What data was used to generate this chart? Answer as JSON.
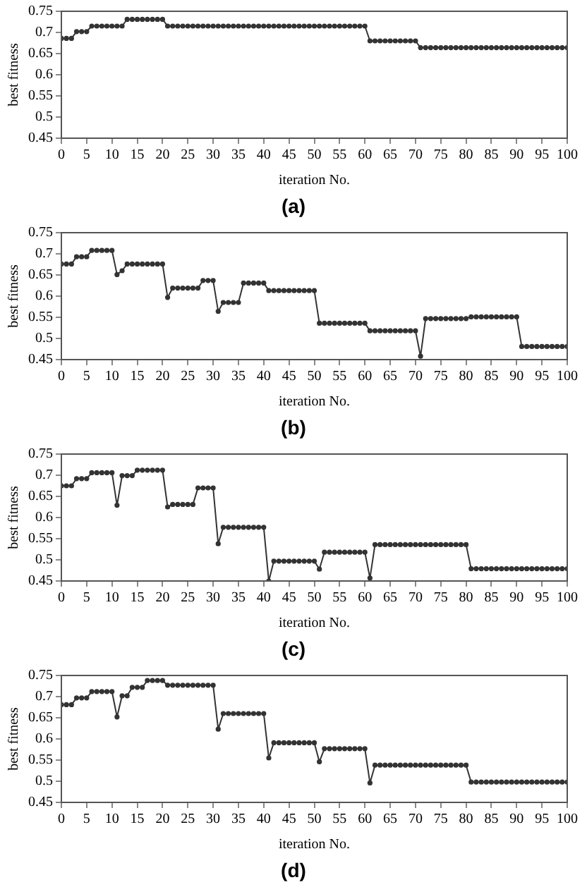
{
  "chart_data": [
    {
      "type": "line",
      "xlabel": "iteration No.",
      "ylabel": "best fitness",
      "annotations": [
        "(a)"
      ],
      "marker": "circle",
      "line_style": "solid",
      "grid": false,
      "legend": false,
      "xlim": [
        0,
        100
      ],
      "xticks": [
        0,
        5,
        10,
        15,
        20,
        25,
        30,
        35,
        40,
        45,
        50,
        55,
        60,
        65,
        70,
        75,
        80,
        85,
        90,
        95,
        100
      ],
      "ylim": [
        0.45,
        0.75
      ],
      "yticks": [
        0.45,
        0.5,
        0.55,
        0.6,
        0.65,
        0.7,
        0.75
      ],
      "x": [
        0,
        1,
        2,
        3,
        4,
        5,
        6,
        7,
        8,
        9,
        10,
        11,
        12,
        13,
        14,
        15,
        16,
        17,
        18,
        19,
        20,
        21,
        22,
        23,
        24,
        25,
        26,
        27,
        28,
        29,
        30,
        31,
        32,
        33,
        34,
        35,
        36,
        37,
        38,
        39,
        40,
        41,
        42,
        43,
        44,
        45,
        46,
        47,
        48,
        49,
        50,
        51,
        52,
        53,
        54,
        55,
        56,
        57,
        58,
        59,
        60,
        61,
        62,
        63,
        64,
        65,
        66,
        67,
        68,
        69,
        70,
        71,
        72,
        73,
        74,
        75,
        76,
        77,
        78,
        79,
        80,
        81,
        82,
        83,
        84,
        85,
        86,
        87,
        88,
        89,
        90,
        91,
        92,
        93,
        94,
        95,
        96,
        97,
        98,
        99,
        100
      ],
      "series": [
        {
          "color": "#333333",
          "values": [
            0.686,
            0.686,
            0.686,
            0.702,
            0.702,
            0.702,
            0.715,
            0.715,
            0.715,
            0.715,
            0.715,
            0.715,
            0.715,
            0.731,
            0.731,
            0.731,
            0.731,
            0.731,
            0.731,
            0.731,
            0.731,
            0.715,
            0.715,
            0.715,
            0.715,
            0.715,
            0.715,
            0.715,
            0.715,
            0.715,
            0.715,
            0.715,
            0.715,
            0.715,
            0.715,
            0.715,
            0.715,
            0.715,
            0.715,
            0.715,
            0.715,
            0.715,
            0.715,
            0.715,
            0.715,
            0.715,
            0.715,
            0.715,
            0.715,
            0.715,
            0.715,
            0.715,
            0.715,
            0.715,
            0.715,
            0.715,
            0.715,
            0.715,
            0.715,
            0.715,
            0.715,
            0.68,
            0.68,
            0.68,
            0.68,
            0.68,
            0.68,
            0.68,
            0.68,
            0.68,
            0.68,
            0.664,
            0.664,
            0.664,
            0.664,
            0.664,
            0.664,
            0.664,
            0.664,
            0.664,
            0.664,
            0.664,
            0.664,
            0.664,
            0.664,
            0.664,
            0.664,
            0.664,
            0.664,
            0.664,
            0.664,
            0.664,
            0.664,
            0.664,
            0.664,
            0.664,
            0.664,
            0.664,
            0.664,
            0.664,
            0.664
          ]
        }
      ]
    },
    {
      "type": "line",
      "xlabel": "iteration No.",
      "ylabel": "best fitness",
      "annotations": [
        "(b)"
      ],
      "marker": "circle",
      "line_style": "solid",
      "grid": false,
      "legend": false,
      "xlim": [
        0,
        100
      ],
      "xticks": [
        0,
        5,
        10,
        15,
        20,
        25,
        30,
        35,
        40,
        45,
        50,
        55,
        60,
        65,
        70,
        75,
        80,
        85,
        90,
        95,
        100
      ],
      "ylim": [
        0.45,
        0.75
      ],
      "yticks": [
        0.45,
        0.5,
        0.55,
        0.6,
        0.65,
        0.7,
        0.75
      ],
      "x": [
        0,
        1,
        2,
        3,
        4,
        5,
        6,
        7,
        8,
        9,
        10,
        11,
        12,
        13,
        14,
        15,
        16,
        17,
        18,
        19,
        20,
        21,
        22,
        23,
        24,
        25,
        26,
        27,
        28,
        29,
        30,
        31,
        32,
        33,
        34,
        35,
        36,
        37,
        38,
        39,
        40,
        41,
        42,
        43,
        44,
        45,
        46,
        47,
        48,
        49,
        50,
        51,
        52,
        53,
        54,
        55,
        56,
        57,
        58,
        59,
        60,
        61,
        62,
        63,
        64,
        65,
        66,
        67,
        68,
        69,
        70,
        71,
        72,
        73,
        74,
        75,
        76,
        77,
        78,
        79,
        80,
        81,
        82,
        83,
        84,
        85,
        86,
        87,
        88,
        89,
        90,
        91,
        92,
        93,
        94,
        95,
        96,
        97,
        98,
        99,
        100
      ],
      "series": [
        {
          "color": "#333333",
          "values": [
            0.676,
            0.676,
            0.676,
            0.693,
            0.693,
            0.693,
            0.708,
            0.708,
            0.708,
            0.708,
            0.708,
            0.651,
            0.66,
            0.676,
            0.676,
            0.676,
            0.676,
            0.676,
            0.676,
            0.676,
            0.676,
            0.597,
            0.619,
            0.619,
            0.619,
            0.619,
            0.619,
            0.619,
            0.637,
            0.637,
            0.637,
            0.564,
            0.585,
            0.585,
            0.585,
            0.585,
            0.631,
            0.631,
            0.631,
            0.631,
            0.631,
            0.613,
            0.613,
            0.613,
            0.613,
            0.613,
            0.613,
            0.613,
            0.613,
            0.613,
            0.613,
            0.536,
            0.536,
            0.536,
            0.536,
            0.536,
            0.536,
            0.536,
            0.536,
            0.536,
            0.536,
            0.518,
            0.518,
            0.518,
            0.518,
            0.518,
            0.518,
            0.518,
            0.518,
            0.518,
            0.518,
            0.458,
            0.547,
            0.547,
            0.547,
            0.547,
            0.547,
            0.547,
            0.547,
            0.547,
            0.547,
            0.551,
            0.551,
            0.551,
            0.551,
            0.551,
            0.551,
            0.551,
            0.551,
            0.551,
            0.551,
            0.481,
            0.481,
            0.481,
            0.481,
            0.481,
            0.481,
            0.481,
            0.481,
            0.481,
            0.481
          ]
        }
      ]
    },
    {
      "type": "line",
      "xlabel": "iteration No.",
      "ylabel": "best fitness",
      "annotations": [
        "(c)"
      ],
      "marker": "circle",
      "line_style": "solid",
      "grid": false,
      "legend": false,
      "xlim": [
        0,
        100
      ],
      "xticks": [
        0,
        5,
        10,
        15,
        20,
        25,
        30,
        35,
        40,
        45,
        50,
        55,
        60,
        65,
        70,
        75,
        80,
        85,
        90,
        95,
        100
      ],
      "ylim": [
        0.45,
        0.75
      ],
      "yticks": [
        0.45,
        0.5,
        0.55,
        0.6,
        0.65,
        0.7,
        0.75
      ],
      "x": [
        0,
        1,
        2,
        3,
        4,
        5,
        6,
        7,
        8,
        9,
        10,
        11,
        12,
        13,
        14,
        15,
        16,
        17,
        18,
        19,
        20,
        21,
        22,
        23,
        24,
        25,
        26,
        27,
        28,
        29,
        30,
        31,
        32,
        33,
        34,
        35,
        36,
        37,
        38,
        39,
        40,
        41,
        42,
        43,
        44,
        45,
        46,
        47,
        48,
        49,
        50,
        51,
        52,
        53,
        54,
        55,
        56,
        57,
        58,
        59,
        60,
        61,
        62,
        63,
        64,
        65,
        66,
        67,
        68,
        69,
        70,
        71,
        72,
        73,
        74,
        75,
        76,
        77,
        78,
        79,
        80,
        81,
        82,
        83,
        84,
        85,
        86,
        87,
        88,
        89,
        90,
        91,
        92,
        93,
        94,
        95,
        96,
        97,
        98,
        99,
        100
      ],
      "series": [
        {
          "color": "#333333",
          "values": [
            0.675,
            0.675,
            0.675,
            0.692,
            0.692,
            0.692,
            0.706,
            0.706,
            0.706,
            0.706,
            0.706,
            0.629,
            0.699,
            0.699,
            0.699,
            0.712,
            0.712,
            0.712,
            0.712,
            0.712,
            0.712,
            0.625,
            0.631,
            0.631,
            0.631,
            0.631,
            0.631,
            0.67,
            0.67,
            0.67,
            0.67,
            0.538,
            0.577,
            0.577,
            0.577,
            0.577,
            0.577,
            0.577,
            0.577,
            0.577,
            0.577,
            0.45,
            0.497,
            0.497,
            0.497,
            0.497,
            0.497,
            0.497,
            0.497,
            0.497,
            0.497,
            0.478,
            0.518,
            0.518,
            0.518,
            0.518,
            0.518,
            0.518,
            0.518,
            0.518,
            0.518,
            0.457,
            0.536,
            0.536,
            0.536,
            0.536,
            0.536,
            0.536,
            0.536,
            0.536,
            0.536,
            0.536,
            0.536,
            0.536,
            0.536,
            0.536,
            0.536,
            0.536,
            0.536,
            0.536,
            0.536,
            0.479,
            0.479,
            0.479,
            0.479,
            0.479,
            0.479,
            0.479,
            0.479,
            0.479,
            0.479,
            0.479,
            0.479,
            0.479,
            0.479,
            0.479,
            0.479,
            0.479,
            0.479,
            0.479,
            0.479
          ]
        }
      ]
    },
    {
      "type": "line",
      "xlabel": "iteration No.",
      "ylabel": "best fitness",
      "annotations": [
        "(d)"
      ],
      "marker": "circle",
      "line_style": "solid",
      "grid": false,
      "legend": false,
      "xlim": [
        0,
        100
      ],
      "xticks": [
        0,
        5,
        10,
        15,
        20,
        25,
        30,
        35,
        40,
        45,
        50,
        55,
        60,
        65,
        70,
        75,
        80,
        85,
        90,
        95,
        100
      ],
      "ylim": [
        0.45,
        0.75
      ],
      "yticks": [
        0.45,
        0.5,
        0.55,
        0.6,
        0.65,
        0.7,
        0.75
      ],
      "x": [
        0,
        1,
        2,
        3,
        4,
        5,
        6,
        7,
        8,
        9,
        10,
        11,
        12,
        13,
        14,
        15,
        16,
        17,
        18,
        19,
        20,
        21,
        22,
        23,
        24,
        25,
        26,
        27,
        28,
        29,
        30,
        31,
        32,
        33,
        34,
        35,
        36,
        37,
        38,
        39,
        40,
        41,
        42,
        43,
        44,
        45,
        46,
        47,
        48,
        49,
        50,
        51,
        52,
        53,
        54,
        55,
        56,
        57,
        58,
        59,
        60,
        61,
        62,
        63,
        64,
        65,
        66,
        67,
        68,
        69,
        70,
        71,
        72,
        73,
        74,
        75,
        76,
        77,
        78,
        79,
        80,
        81,
        82,
        83,
        84,
        85,
        86,
        87,
        88,
        89,
        90,
        91,
        92,
        93,
        94,
        95,
        96,
        97,
        98,
        99,
        100
      ],
      "series": [
        {
          "color": "#333333",
          "values": [
            0.681,
            0.681,
            0.681,
            0.697,
            0.697,
            0.697,
            0.712,
            0.712,
            0.712,
            0.712,
            0.712,
            0.652,
            0.702,
            0.702,
            0.722,
            0.722,
            0.722,
            0.738,
            0.738,
            0.738,
            0.738,
            0.727,
            0.727,
            0.727,
            0.727,
            0.727,
            0.727,
            0.727,
            0.727,
            0.727,
            0.727,
            0.623,
            0.66,
            0.66,
            0.66,
            0.66,
            0.66,
            0.66,
            0.66,
            0.66,
            0.66,
            0.555,
            0.591,
            0.591,
            0.591,
            0.591,
            0.591,
            0.591,
            0.591,
            0.591,
            0.591,
            0.546,
            0.577,
            0.577,
            0.577,
            0.577,
            0.577,
            0.577,
            0.577,
            0.577,
            0.577,
            0.496,
            0.538,
            0.538,
            0.538,
            0.538,
            0.538,
            0.538,
            0.538,
            0.538,
            0.538,
            0.538,
            0.538,
            0.538,
            0.538,
            0.538,
            0.538,
            0.538,
            0.538,
            0.538,
            0.538,
            0.498,
            0.498,
            0.498,
            0.498,
            0.498,
            0.498,
            0.498,
            0.498,
            0.498,
            0.498,
            0.498,
            0.498,
            0.498,
            0.498,
            0.498,
            0.498,
            0.498,
            0.498,
            0.498,
            0.498
          ]
        }
      ]
    }
  ]
}
